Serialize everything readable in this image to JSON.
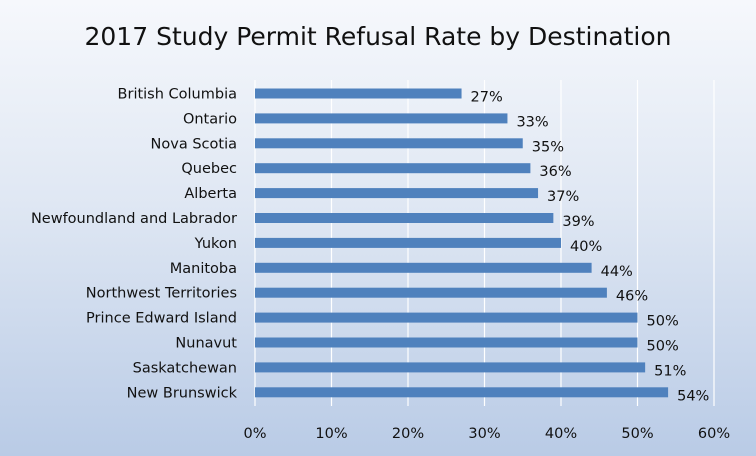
{
  "chart_data": {
    "type": "bar",
    "orientation": "horizontal",
    "title": "2017 Study Permit Refusal Rate by Destination",
    "categories": [
      "British Columbia",
      "Ontario",
      "Nova Scotia",
      "Quebec",
      "Alberta",
      "Newfoundland and Labrador",
      "Yukon",
      "Manitoba",
      "Northwest Territories",
      "Prince Edward Island",
      "Nunavut",
      "Saskatchewan",
      "New Brunswick"
    ],
    "values": [
      27,
      33,
      35,
      36,
      37,
      39,
      40,
      44,
      46,
      50,
      50,
      51,
      54
    ],
    "data_labels": [
      "27%",
      "33%",
      "35%",
      "36%",
      "37%",
      "39%",
      "40%",
      "44%",
      "46%",
      "50%",
      "50%",
      "51%",
      "54%"
    ],
    "xlim": [
      0,
      60
    ],
    "x_ticks": [
      0,
      10,
      20,
      30,
      40,
      50,
      60
    ],
    "x_tick_labels": [
      "0%",
      "10%",
      "20%",
      "30%",
      "40%",
      "50%",
      "60%"
    ],
    "xlabel": "",
    "ylabel": "",
    "grid": true,
    "bar_color": "#4f81bd",
    "grid_color": "#ffffff"
  }
}
